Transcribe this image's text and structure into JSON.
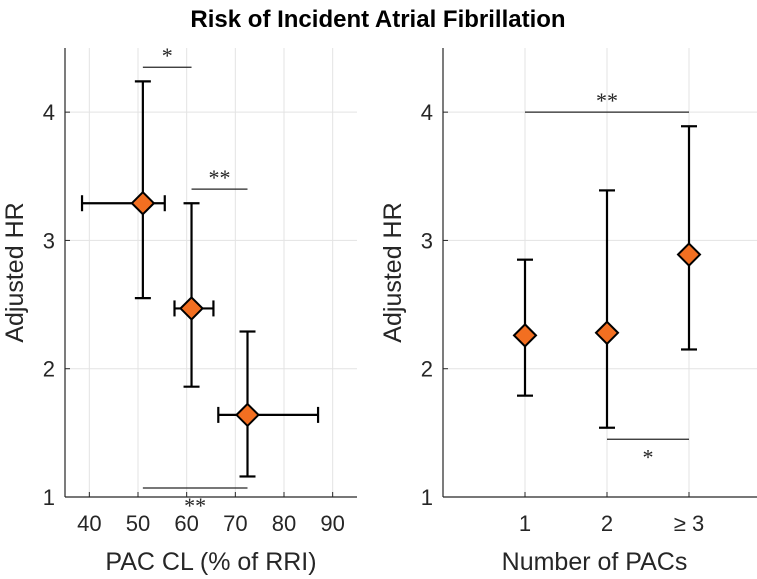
{
  "title": "Risk of Incident Atrial Fibrillation",
  "colors": {
    "marker_fill": "#f26f21",
    "marker_edge": "#000000",
    "errorbar": "#000000",
    "grid": "#e3e3e3",
    "axis": "#262626",
    "bracket": "#262626"
  },
  "chart_data": [
    {
      "type": "scatter",
      "subtype": "errorbar",
      "xlabel": "PAC CL (% of RRI)",
      "ylabel": "Adjusted HR",
      "xlim": [
        35,
        95
      ],
      "ylim": [
        1,
        4.5
      ],
      "xticks": [
        40,
        50,
        60,
        70,
        80,
        90
      ],
      "xtick_labels": [
        "40",
        "50",
        "60",
        "70",
        "80",
        "90"
      ],
      "yticks": [
        1,
        2,
        3,
        4
      ],
      "ytick_labels": [
        "1",
        "2",
        "3",
        "4"
      ],
      "grid": true,
      "points": [
        {
          "x": 51,
          "y": 3.29,
          "ylow": 2.55,
          "yhigh": 4.24,
          "xlow": 38.5,
          "xhigh": 55.5
        },
        {
          "x": 61,
          "y": 2.47,
          "ylow": 1.86,
          "yhigh": 3.29,
          "xlow": 57.5,
          "xhigh": 65.5
        },
        {
          "x": 72.5,
          "y": 1.64,
          "ylow": 1.16,
          "yhigh": 2.29,
          "xlow": 66.5,
          "xhigh": 87
        }
      ],
      "significance": [
        {
          "x1": 51,
          "x2": 61,
          "y": 4.35,
          "label": "*",
          "label_pos": "above"
        },
        {
          "x1": 61,
          "x2": 72.5,
          "y": 3.4,
          "label": "**",
          "label_pos": "above"
        },
        {
          "x1": 51,
          "x2": 72.5,
          "y": 1.07,
          "label": "**",
          "label_pos": "below"
        }
      ]
    },
    {
      "type": "scatter",
      "subtype": "errorbar",
      "xlabel": "Number of PACs",
      "ylabel": "Adjusted HR",
      "xlim": [
        0,
        4
      ],
      "ylim": [
        1,
        4.5
      ],
      "xticks": [
        1,
        2,
        3
      ],
      "xtick_labels": [
        "1",
        "2",
        "≥ 3"
      ],
      "yticks": [
        1,
        2,
        3,
        4
      ],
      "ytick_labels": [
        "1",
        "2",
        "3",
        "4"
      ],
      "grid": true,
      "points": [
        {
          "x": 1,
          "y": 2.26,
          "ylow": 1.79,
          "yhigh": 2.85
        },
        {
          "x": 2,
          "y": 2.28,
          "ylow": 1.54,
          "yhigh": 3.39
        },
        {
          "x": 3,
          "y": 2.89,
          "ylow": 2.15,
          "yhigh": 3.89
        }
      ],
      "significance": [
        {
          "x1": 1,
          "x2": 3,
          "y": 4.0,
          "label": "**",
          "label_pos": "above"
        },
        {
          "x1": 2,
          "x2": 3,
          "y": 1.45,
          "label": "*",
          "label_pos": "below"
        }
      ]
    }
  ]
}
